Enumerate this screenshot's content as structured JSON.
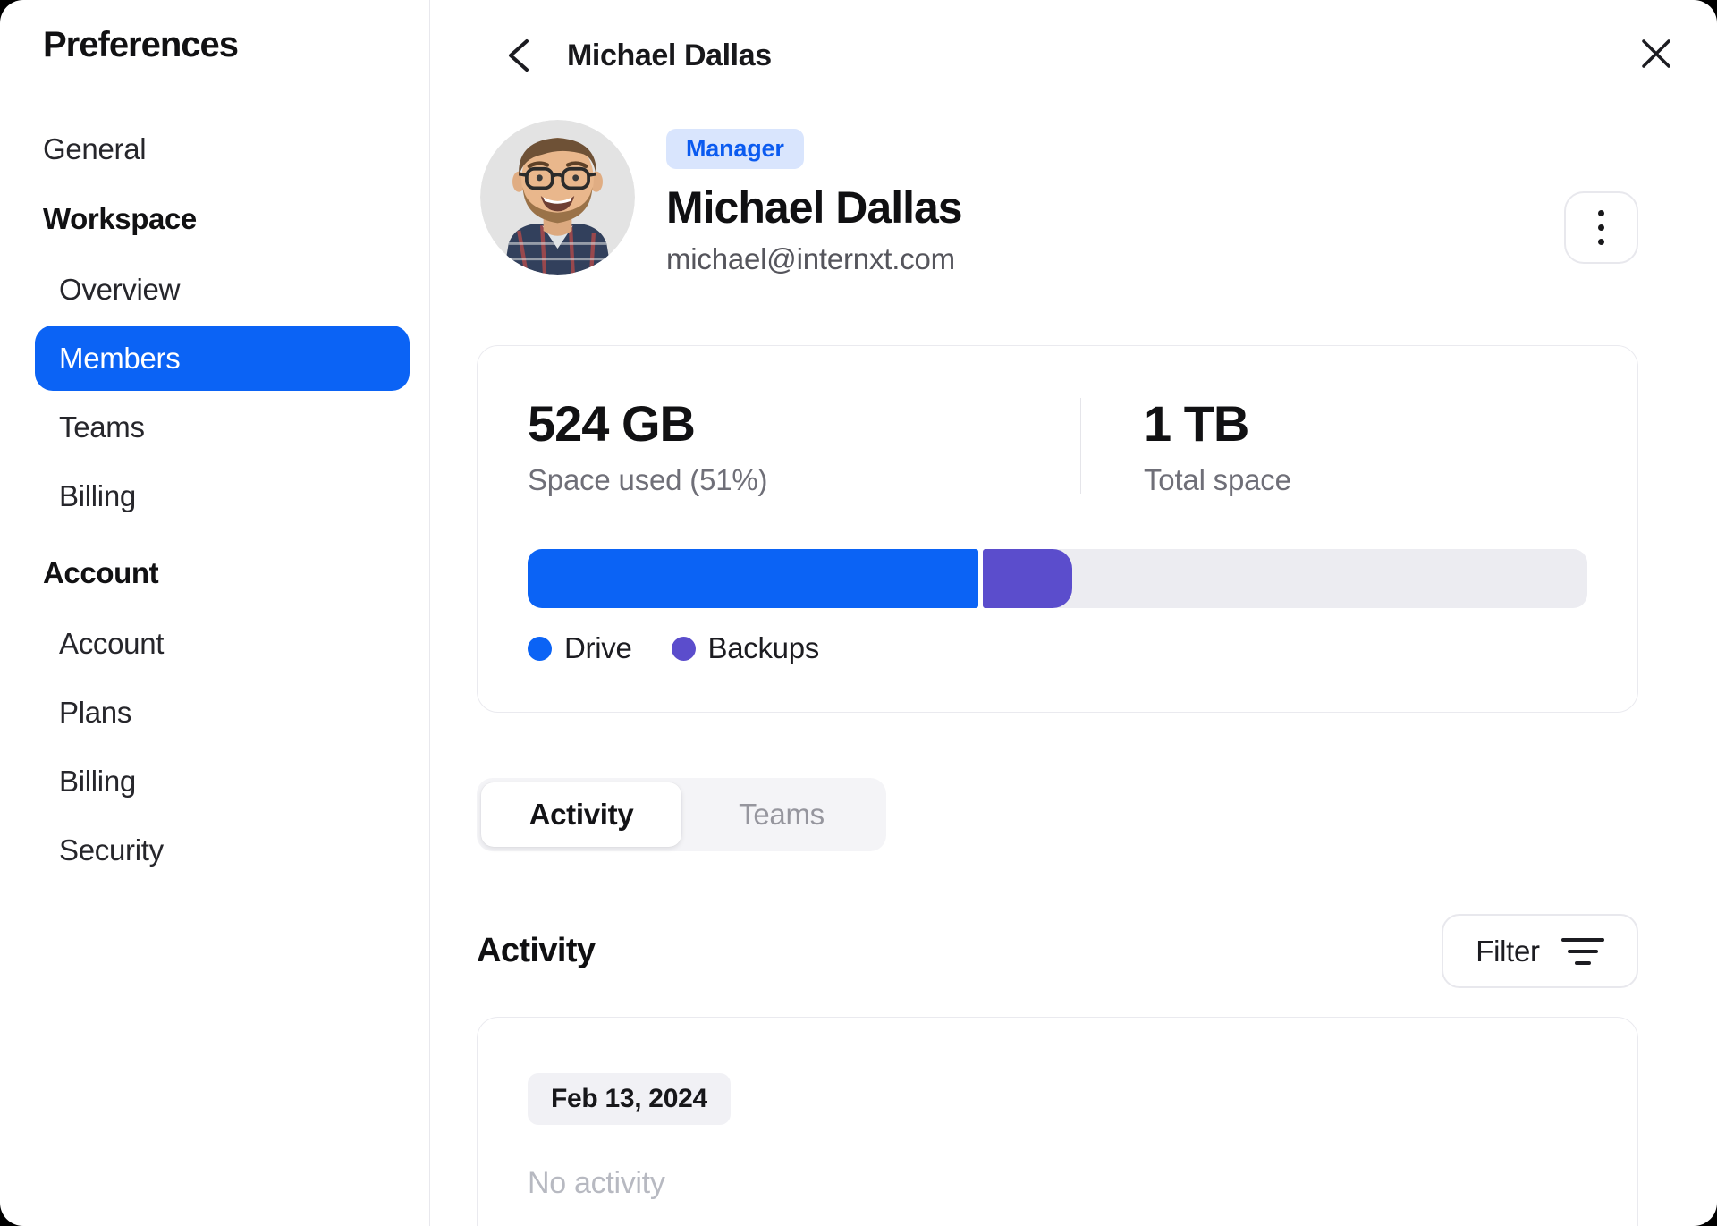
{
  "colors": {
    "accent": "#0b63f5",
    "backups_purple": "#5b4dcc",
    "badge_bg": "#d9e5fd",
    "track_gray": "#ececf1"
  },
  "sidebar": {
    "title": "Preferences",
    "items": [
      {
        "label": "General",
        "type": "item",
        "active": false
      },
      {
        "label": "Workspace",
        "type": "section",
        "active": false
      },
      {
        "label": "Overview",
        "type": "subitem",
        "active": false
      },
      {
        "label": "Members",
        "type": "subitem",
        "active": true
      },
      {
        "label": "Teams",
        "type": "subitem",
        "active": false
      },
      {
        "label": "Billing",
        "type": "subitem",
        "active": false
      },
      {
        "label": "Account",
        "type": "section",
        "active": false
      },
      {
        "label": "Account",
        "type": "subitem",
        "active": false
      },
      {
        "label": "Plans",
        "type": "subitem",
        "active": false
      },
      {
        "label": "Billing",
        "type": "subitem",
        "active": false
      },
      {
        "label": "Security",
        "type": "subitem",
        "active": false
      }
    ]
  },
  "header": {
    "title": "Michael Dallas",
    "back_icon": "chevron-left-icon",
    "close_icon": "close-icon"
  },
  "profile": {
    "badge": "Manager",
    "name": "Michael Dallas",
    "email": "michael@internxt.com",
    "menu_icon": "kebab-menu-icon"
  },
  "storage": {
    "used_value": "524 GB",
    "used_label": "Space used (51%)",
    "total_value": "1 TB",
    "total_label": "Total space",
    "used_percent": 51,
    "segments": [
      {
        "name": "Drive",
        "color": "#0b63f5",
        "percent": 42.5
      },
      {
        "name": "Backups",
        "color": "#5b4dcc",
        "percent": 8.5
      }
    ]
  },
  "tabs": [
    {
      "label": "Activity",
      "active": true
    },
    {
      "label": "Teams",
      "active": false
    }
  ],
  "activity": {
    "heading": "Activity",
    "filter_label": "Filter",
    "groups": [
      {
        "date": "Feb 13, 2024",
        "empty_text": "No activity"
      }
    ]
  }
}
